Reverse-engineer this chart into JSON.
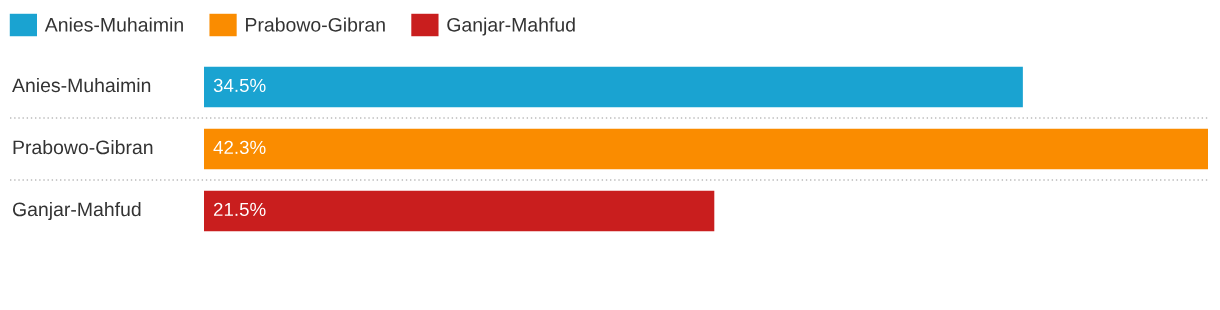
{
  "chart_data": {
    "type": "bar",
    "orientation": "horizontal",
    "categories": [
      "Anies-Muhaimin",
      "Prabowo-Gibran",
      "Ganjar-Mahfud"
    ],
    "series": [
      {
        "name": "Anies-Muhaimin",
        "color": "#1aa3d1",
        "values": [
          34.5,
          null,
          null
        ],
        "value_labels": [
          "34.5%",
          null,
          null
        ]
      },
      {
        "name": "Prabowo-Gibran",
        "color": "#fa8c00",
        "values": [
          null,
          42.3,
          null
        ],
        "value_labels": [
          null,
          "42.3%",
          null
        ]
      },
      {
        "name": "Ganjar-Mahfud",
        "color": "#c91e1e",
        "values": [
          null,
          null,
          21.5
        ],
        "value_labels": [
          null,
          null,
          "21.5%"
        ]
      }
    ],
    "legend": "top left"
  }
}
